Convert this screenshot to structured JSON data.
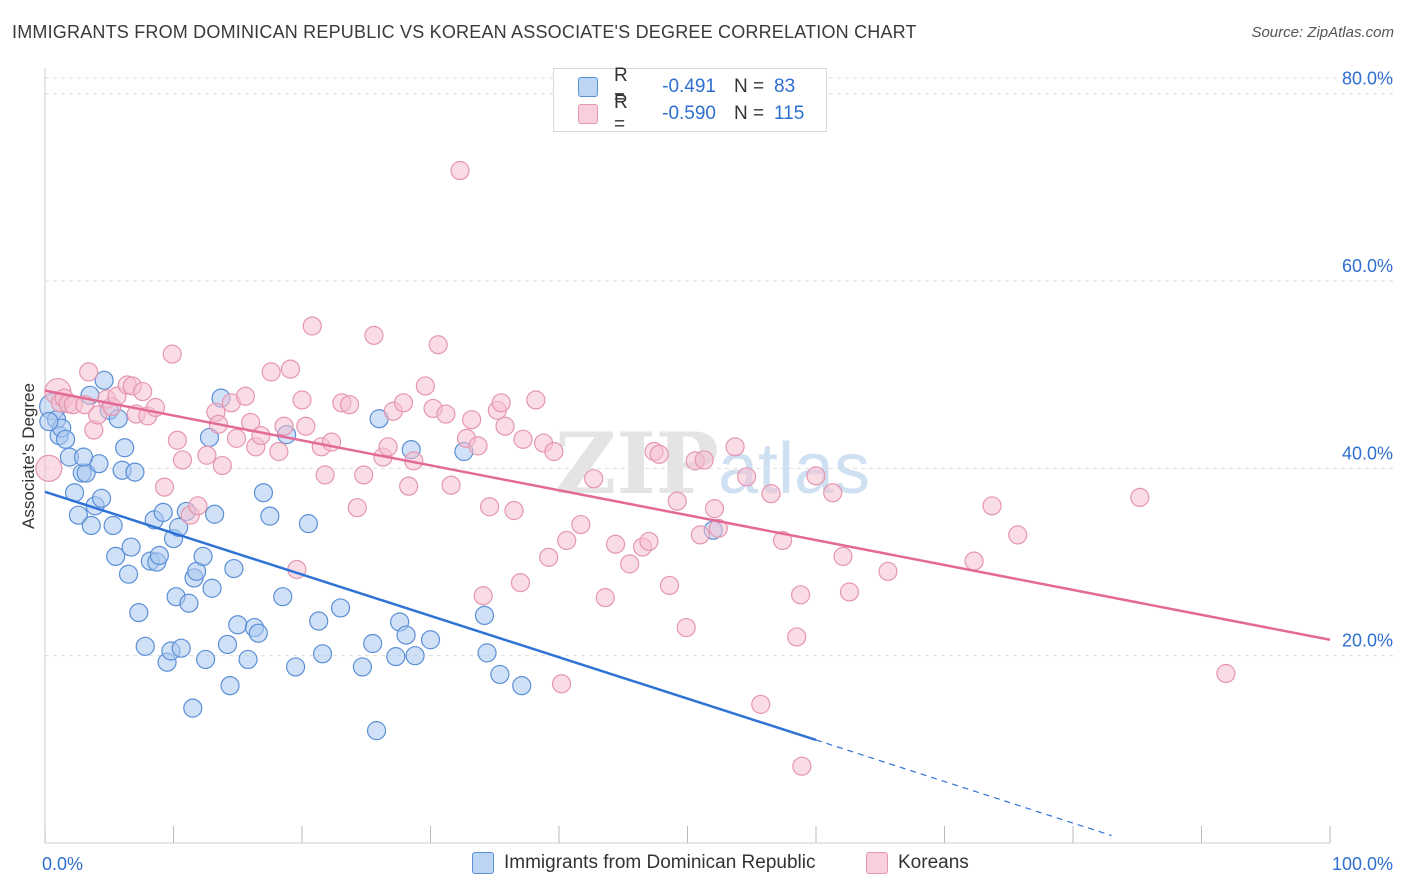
{
  "title": "IMMIGRANTS FROM DOMINICAN REPUBLIC VS KOREAN ASSOCIATE'S DEGREE CORRELATION CHART",
  "source": "Source: ZipAtlas.com",
  "watermark": "ZIPatlas",
  "legend": {
    "rows": [
      {
        "r_label": "R =",
        "r_value": "-0.491",
        "n_label": "N =",
        "n_value": "83"
      },
      {
        "r_label": "R =",
        "r_value": "-0.590",
        "n_label": "N =",
        "n_value": "115"
      }
    ]
  },
  "bottom_legend": [
    "Immigrants from Dominican Republic",
    "Koreans"
  ],
  "colors": {
    "blue_fill": "#a9c8f0",
    "blue_stroke": "#5b8fd6",
    "blue_line": "#2f73d6",
    "pink_fill": "#f6c0d0",
    "pink_stroke": "#e596b0",
    "pink_line": "#e46a96",
    "tick_label": "#2f6fd0",
    "grid": "#dddddd"
  },
  "chart_data": {
    "type": "scatter",
    "title": "IMMIGRANTS FROM DOMINICAN REPUBLIC VS KOREAN ASSOCIATE'S DEGREE CORRELATION CHART",
    "xlabel": "",
    "ylabel": "Associate's Degree",
    "xlim": [
      0,
      100
    ],
    "ylim": [
      0,
      82
    ],
    "x_tick_labels": [
      "0.0%",
      "100.0%"
    ],
    "y_ticks": [
      20,
      40,
      60,
      80
    ],
    "y_tick_labels": [
      "20.0%",
      "40.0%",
      "60.0%",
      "80.0%"
    ],
    "grid": true,
    "legend_position": "top-center",
    "series": [
      {
        "name": "Immigrants from Dominican Republic",
        "r": -0.491,
        "n": 83,
        "trend": {
          "x0": 0,
          "y0": 37.5,
          "x1": 60,
          "y1": 11.0,
          "dashed_to_x": 83,
          "dashed_to_y": 0.8
        },
        "points": [
          [
            0.6,
            46.6
          ],
          [
            0.9,
            45.2
          ],
          [
            1.1,
            43.5
          ],
          [
            1.3,
            44.3
          ],
          [
            1.6,
            43.1
          ],
          [
            1.9,
            41.2
          ],
          [
            2.3,
            37.4
          ],
          [
            2.6,
            35.0
          ],
          [
            2.9,
            39.5
          ],
          [
            3.2,
            39.5
          ],
          [
            3.5,
            47.8
          ],
          [
            3.6,
            33.9
          ],
          [
            3.9,
            36.0
          ],
          [
            4.2,
            40.5
          ],
          [
            4.4,
            36.8
          ],
          [
            4.6,
            49.4
          ],
          [
            5.0,
            46.2
          ],
          [
            5.3,
            33.9
          ],
          [
            5.5,
            30.6
          ],
          [
            5.7,
            45.3
          ],
          [
            6.0,
            39.8
          ],
          [
            6.2,
            42.2
          ],
          [
            6.5,
            28.7
          ],
          [
            6.7,
            31.6
          ],
          [
            7.0,
            39.6
          ],
          [
            7.3,
            24.6
          ],
          [
            7.8,
            21.0
          ],
          [
            8.2,
            30.1
          ],
          [
            8.5,
            34.5
          ],
          [
            8.7,
            30.0
          ],
          [
            8.9,
            30.7
          ],
          [
            9.2,
            35.3
          ],
          [
            9.5,
            19.3
          ],
          [
            9.8,
            20.5
          ],
          [
            10.0,
            32.5
          ],
          [
            10.2,
            26.3
          ],
          [
            10.4,
            33.7
          ],
          [
            10.6,
            20.8
          ],
          [
            11.0,
            35.4
          ],
          [
            11.2,
            25.6
          ],
          [
            11.6,
            28.3
          ],
          [
            11.8,
            29.0
          ],
          [
            12.3,
            30.6
          ],
          [
            12.5,
            19.6
          ],
          [
            12.8,
            43.3
          ],
          [
            13.0,
            27.2
          ],
          [
            13.2,
            35.1
          ],
          [
            13.7,
            47.5
          ],
          [
            14.2,
            21.2
          ],
          [
            14.4,
            16.8
          ],
          [
            14.7,
            29.3
          ],
          [
            15.0,
            23.3
          ],
          [
            15.8,
            19.6
          ],
          [
            16.3,
            23.0
          ],
          [
            16.6,
            22.4
          ],
          [
            17.0,
            37.4
          ],
          [
            17.5,
            34.9
          ],
          [
            18.5,
            26.3
          ],
          [
            18.8,
            43.6
          ],
          [
            19.5,
            18.8
          ],
          [
            20.5,
            34.1
          ],
          [
            21.3,
            23.7
          ],
          [
            21.6,
            20.2
          ],
          [
            23.0,
            25.1
          ],
          [
            24.7,
            18.8
          ],
          [
            25.5,
            21.3
          ],
          [
            25.8,
            12.0
          ],
          [
            26.0,
            45.3
          ],
          [
            27.3,
            19.9
          ],
          [
            27.6,
            23.6
          ],
          [
            28.1,
            22.2
          ],
          [
            28.5,
            42.0
          ],
          [
            28.8,
            20.0
          ],
          [
            30.0,
            21.7
          ],
          [
            32.6,
            41.8
          ],
          [
            34.2,
            24.3
          ],
          [
            34.4,
            20.3
          ],
          [
            35.4,
            18.0
          ],
          [
            37.1,
            16.8
          ],
          [
            52.0,
            33.4
          ],
          [
            0.3,
            45.0
          ],
          [
            11.5,
            14.4
          ],
          [
            3.0,
            41.2
          ]
        ]
      },
      {
        "name": "Koreans",
        "r": -0.59,
        "n": 115,
        "trend": {
          "x0": 0,
          "y0": 48.3,
          "x1": 100,
          "y1": 21.7
        },
        "points": [
          [
            0.3,
            40.0
          ],
          [
            1.0,
            48.2
          ],
          [
            1.2,
            47.0
          ],
          [
            1.5,
            47.5
          ],
          [
            1.8,
            46.9
          ],
          [
            2.2,
            46.8
          ],
          [
            3.1,
            46.8
          ],
          [
            3.4,
            50.3
          ],
          [
            3.8,
            44.1
          ],
          [
            4.1,
            45.7
          ],
          [
            4.8,
            47.4
          ],
          [
            5.2,
            46.6
          ],
          [
            5.6,
            47.7
          ],
          [
            6.4,
            48.9
          ],
          [
            6.8,
            48.8
          ],
          [
            7.1,
            45.8
          ],
          [
            7.6,
            48.2
          ],
          [
            8.0,
            45.6
          ],
          [
            8.6,
            46.5
          ],
          [
            9.3,
            38.0
          ],
          [
            9.9,
            52.2
          ],
          [
            10.3,
            43.0
          ],
          [
            10.7,
            40.9
          ],
          [
            11.3,
            35.0
          ],
          [
            11.9,
            36.0
          ],
          [
            12.6,
            41.4
          ],
          [
            13.3,
            46.0
          ],
          [
            13.5,
            44.7
          ],
          [
            13.8,
            40.3
          ],
          [
            14.5,
            47.0
          ],
          [
            14.9,
            43.2
          ],
          [
            15.6,
            47.7
          ],
          [
            16.0,
            44.9
          ],
          [
            16.4,
            42.3
          ],
          [
            16.8,
            43.5
          ],
          [
            17.6,
            50.3
          ],
          [
            18.2,
            41.8
          ],
          [
            18.6,
            44.5
          ],
          [
            19.1,
            50.6
          ],
          [
            19.6,
            29.2
          ],
          [
            20.0,
            47.3
          ],
          [
            20.3,
            44.5
          ],
          [
            20.8,
            55.2
          ],
          [
            21.5,
            42.3
          ],
          [
            21.8,
            39.3
          ],
          [
            22.3,
            42.8
          ],
          [
            23.1,
            47.0
          ],
          [
            23.7,
            46.8
          ],
          [
            24.3,
            35.8
          ],
          [
            24.8,
            39.3
          ],
          [
            25.6,
            54.2
          ],
          [
            26.3,
            41.2
          ],
          [
            26.7,
            42.3
          ],
          [
            27.1,
            46.1
          ],
          [
            27.9,
            47.0
          ],
          [
            28.3,
            38.1
          ],
          [
            28.7,
            40.8
          ],
          [
            29.6,
            48.8
          ],
          [
            30.2,
            46.4
          ],
          [
            30.6,
            53.2
          ],
          [
            31.2,
            45.8
          ],
          [
            31.6,
            38.2
          ],
          [
            32.3,
            71.8
          ],
          [
            32.8,
            43.2
          ],
          [
            33.2,
            45.2
          ],
          [
            33.7,
            42.4
          ],
          [
            34.1,
            26.4
          ],
          [
            34.6,
            35.9
          ],
          [
            35.2,
            46.2
          ],
          [
            35.5,
            47.0
          ],
          [
            35.8,
            44.5
          ],
          [
            36.5,
            35.5
          ],
          [
            37.0,
            27.8
          ],
          [
            37.2,
            43.1
          ],
          [
            38.2,
            47.3
          ],
          [
            38.8,
            42.7
          ],
          [
            39.2,
            30.5
          ],
          [
            39.6,
            41.8
          ],
          [
            40.2,
            17.0
          ],
          [
            40.6,
            32.3
          ],
          [
            41.7,
            34.0
          ],
          [
            42.7,
            38.9
          ],
          [
            43.6,
            26.2
          ],
          [
            44.4,
            31.9
          ],
          [
            45.5,
            29.8
          ],
          [
            46.5,
            31.6
          ],
          [
            47.0,
            32.2
          ],
          [
            47.4,
            41.8
          ],
          [
            47.8,
            41.5
          ],
          [
            48.6,
            27.5
          ],
          [
            49.2,
            36.5
          ],
          [
            49.9,
            23.0
          ],
          [
            50.6,
            40.8
          ],
          [
            51.0,
            32.9
          ],
          [
            51.3,
            40.9
          ],
          [
            52.1,
            35.7
          ],
          [
            52.4,
            33.6
          ],
          [
            53.7,
            42.3
          ],
          [
            54.6,
            39.1
          ],
          [
            55.7,
            14.8
          ],
          [
            56.5,
            37.3
          ],
          [
            57.4,
            32.3
          ],
          [
            58.5,
            22.0
          ],
          [
            58.8,
            26.5
          ],
          [
            58.9,
            8.2
          ],
          [
            60.0,
            39.2
          ],
          [
            61.3,
            37.4
          ],
          [
            62.1,
            30.6
          ],
          [
            62.6,
            26.8
          ],
          [
            65.6,
            29.0
          ],
          [
            72.3,
            30.1
          ],
          [
            73.7,
            36.0
          ],
          [
            75.7,
            32.9
          ],
          [
            85.2,
            36.9
          ],
          [
            91.9,
            18.1
          ]
        ]
      }
    ]
  }
}
